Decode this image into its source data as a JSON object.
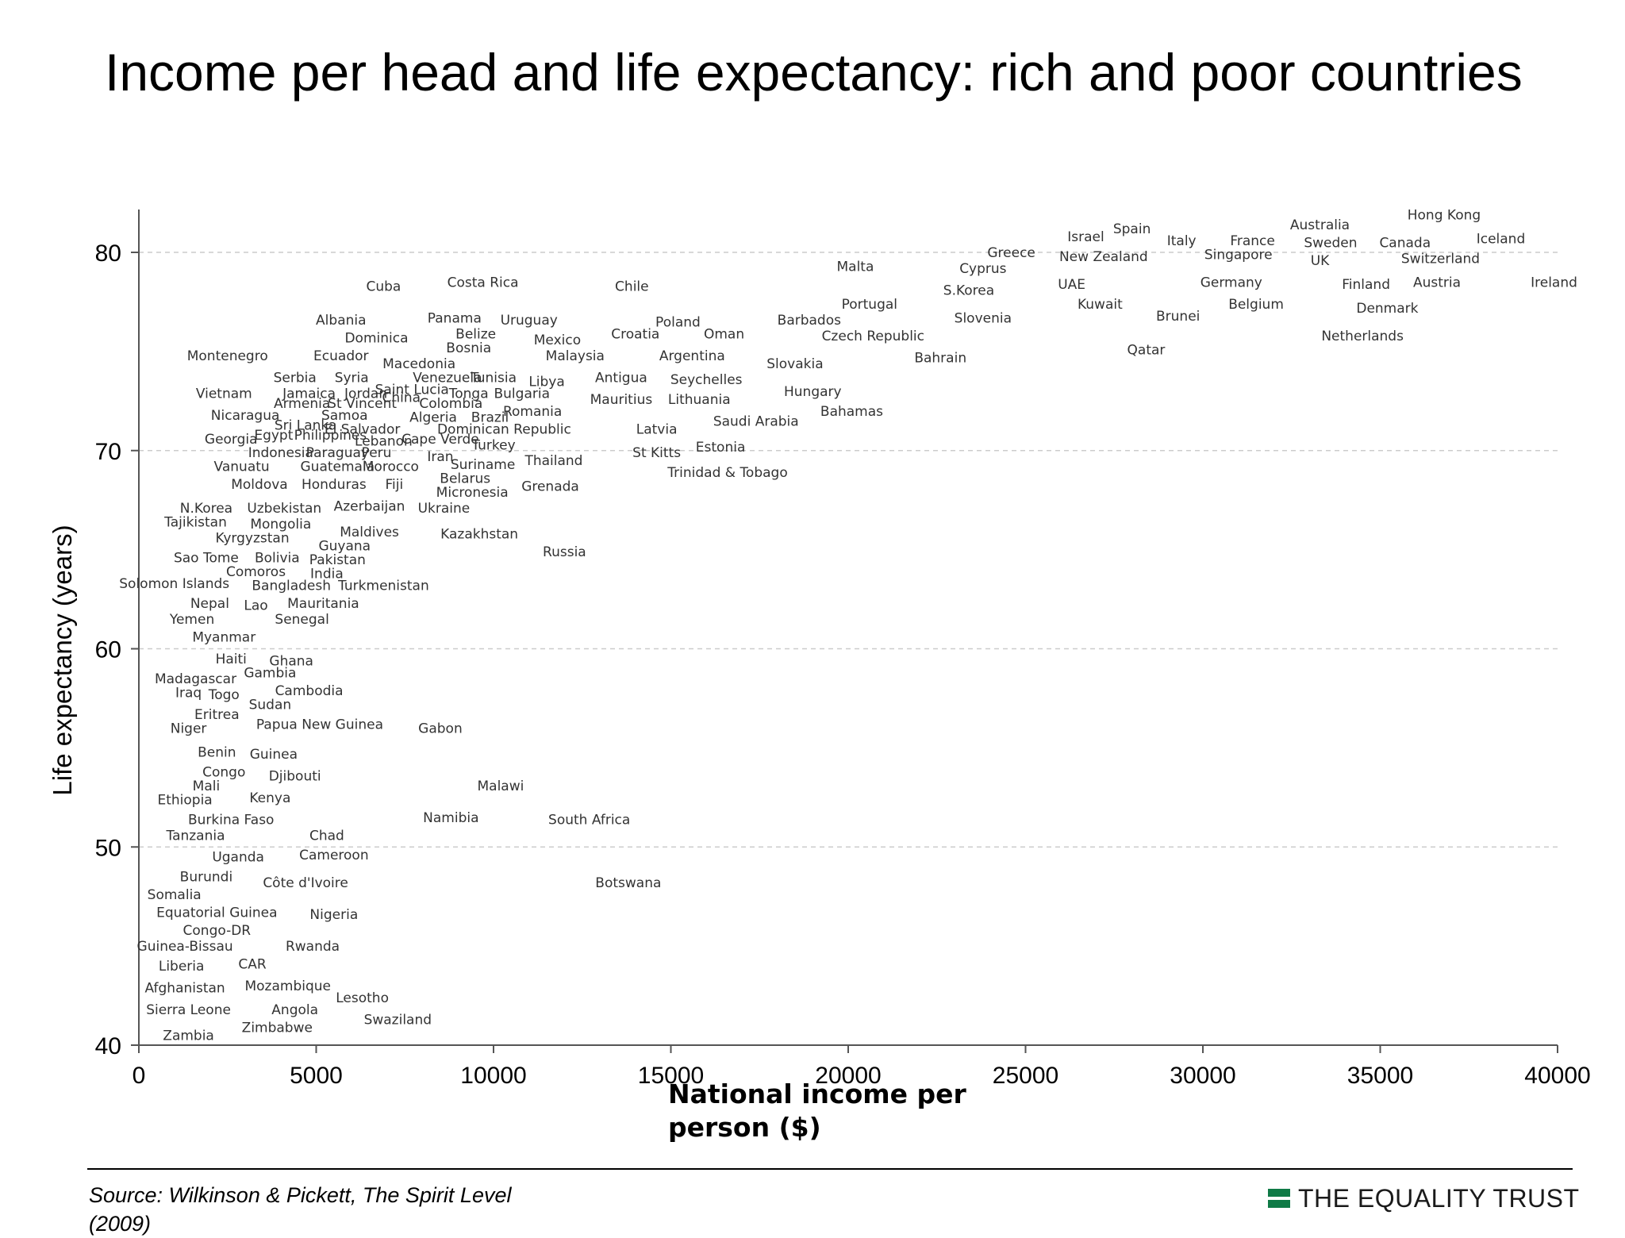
{
  "title": "Income per head and life expectancy: rich and poor countries",
  "source": "Source: Wilkinson & Pickett, The Spirit Level (2009)",
  "brand": "THE EQUALITY TRUST",
  "colors": {
    "brand_green": "#0f7a46",
    "grid": "#cccccc",
    "text": "#000000",
    "label": "#333333"
  },
  "chart_data": {
    "type": "scatter",
    "xlabel": "National income per person ($)",
    "ylabel": "Life expectancy (years)",
    "xlim": [
      0,
      40000
    ],
    "ylim": [
      40,
      82
    ],
    "xticks": [
      0,
      5000,
      10000,
      15000,
      20000,
      25000,
      30000,
      35000,
      40000
    ],
    "yticks": [
      40,
      50,
      60,
      70,
      80
    ],
    "grid": "horizontal dashed",
    "marker": "country name text label",
    "points": [
      {
        "label": "Hong Kong",
        "x": 36800,
        "y": 81.9
      },
      {
        "label": "Iceland",
        "x": 38400,
        "y": 80.7
      },
      {
        "label": "Australia",
        "x": 33300,
        "y": 81.4
      },
      {
        "label": "Spain",
        "x": 28000,
        "y": 81.2
      },
      {
        "label": "Israel",
        "x": 26700,
        "y": 80.8
      },
      {
        "label": "Italy",
        "x": 29400,
        "y": 80.6
      },
      {
        "label": "France",
        "x": 31400,
        "y": 80.6
      },
      {
        "label": "Sweden",
        "x": 33600,
        "y": 80.5
      },
      {
        "label": "Canada",
        "x": 35700,
        "y": 80.5
      },
      {
        "label": "Greece",
        "x": 24600,
        "y": 80.0
      },
      {
        "label": "New Zealand",
        "x": 27200,
        "y": 79.8
      },
      {
        "label": "Singapore",
        "x": 31000,
        "y": 79.9
      },
      {
        "label": "Switzerland",
        "x": 36700,
        "y": 79.7
      },
      {
        "label": "UK",
        "x": 33300,
        "y": 79.6
      },
      {
        "label": "Malta",
        "x": 20200,
        "y": 79.3
      },
      {
        "label": "Cyprus",
        "x": 23800,
        "y": 79.2
      },
      {
        "label": "UAE",
        "x": 26300,
        "y": 78.4
      },
      {
        "label": "Germany",
        "x": 30800,
        "y": 78.5
      },
      {
        "label": "Finland",
        "x": 34600,
        "y": 78.4
      },
      {
        "label": "Austria",
        "x": 36600,
        "y": 78.5
      },
      {
        "label": "Ireland",
        "x": 39900,
        "y": 78.5
      },
      {
        "label": "S.Korea",
        "x": 23400,
        "y": 78.1
      },
      {
        "label": "Kuwait",
        "x": 27100,
        "y": 77.4
      },
      {
        "label": "Belgium",
        "x": 31500,
        "y": 77.4
      },
      {
        "label": "Denmark",
        "x": 35200,
        "y": 77.2
      },
      {
        "label": "Portugal",
        "x": 20600,
        "y": 77.4
      },
      {
        "label": "Slovenia",
        "x": 23800,
        "y": 76.7
      },
      {
        "label": "Brunei",
        "x": 29300,
        "y": 76.8
      },
      {
        "label": "Netherlands",
        "x": 34500,
        "y": 75.8
      },
      {
        "label": "Czech Republic",
        "x": 20700,
        "y": 75.8
      },
      {
        "label": "Qatar",
        "x": 28400,
        "y": 75.1
      },
      {
        "label": "Bahrain",
        "x": 22600,
        "y": 74.7
      },
      {
        "label": "Barbados",
        "x": 18900,
        "y": 76.6
      },
      {
        "label": "Oman",
        "x": 16500,
        "y": 75.9
      },
      {
        "label": "Slovakia",
        "x": 18500,
        "y": 74.4
      },
      {
        "label": "Hungary",
        "x": 19000,
        "y": 73.0
      },
      {
        "label": "Bahamas",
        "x": 20100,
        "y": 72.0
      },
      {
        "label": "Saudi Arabia",
        "x": 17400,
        "y": 71.5
      },
      {
        "label": "Estonia",
        "x": 16400,
        "y": 70.2
      },
      {
        "label": "Trinidad & Tobago",
        "x": 16600,
        "y": 68.9
      },
      {
        "label": "Cuba",
        "x": 6900,
        "y": 78.3
      },
      {
        "label": "Costa Rica",
        "x": 9700,
        "y": 78.5
      },
      {
        "label": "Chile",
        "x": 13900,
        "y": 78.3
      },
      {
        "label": "Albania",
        "x": 5700,
        "y": 76.6
      },
      {
        "label": "Panama",
        "x": 8900,
        "y": 76.7
      },
      {
        "label": "Uruguay",
        "x": 11000,
        "y": 76.6
      },
      {
        "label": "Poland",
        "x": 15200,
        "y": 76.5
      },
      {
        "label": "Belize",
        "x": 9500,
        "y": 75.9
      },
      {
        "label": "Croatia",
        "x": 14000,
        "y": 75.9
      },
      {
        "label": "Dominica",
        "x": 6700,
        "y": 75.7
      },
      {
        "label": "Mexico",
        "x": 11800,
        "y": 75.6
      },
      {
        "label": "Bosnia",
        "x": 9300,
        "y": 75.2
      },
      {
        "label": "Montenegro",
        "x": 2500,
        "y": 74.8
      },
      {
        "label": "Ecuador",
        "x": 5700,
        "y": 74.8
      },
      {
        "label": "Malaysia",
        "x": 12300,
        "y": 74.8
      },
      {
        "label": "Argentina",
        "x": 15600,
        "y": 74.8
      },
      {
        "label": "Macedonia",
        "x": 7900,
        "y": 74.4
      },
      {
        "label": "Serbia",
        "x": 4400,
        "y": 73.7
      },
      {
        "label": "Syria",
        "x": 6000,
        "y": 73.7
      },
      {
        "label": "Venezuela",
        "x": 8700,
        "y": 73.7
      },
      {
        "label": "Tunisia",
        "x": 10000,
        "y": 73.7
      },
      {
        "label": "Libya",
        "x": 11500,
        "y": 73.5
      },
      {
        "label": "Antigua",
        "x": 13600,
        "y": 73.7
      },
      {
        "label": "Seychelles",
        "x": 16000,
        "y": 73.6
      },
      {
        "label": "Saint Lucia",
        "x": 7700,
        "y": 73.1
      },
      {
        "label": "Vietnam",
        "x": 2400,
        "y": 72.9
      },
      {
        "label": "Jamaica",
        "x": 4800,
        "y": 72.9
      },
      {
        "label": "Jordan",
        "x": 6400,
        "y": 72.9
      },
      {
        "label": "Tonga",
        "x": 9300,
        "y": 72.9
      },
      {
        "label": "Bulgaria",
        "x": 10800,
        "y": 72.9
      },
      {
        "label": "China",
        "x": 7400,
        "y": 72.7
      },
      {
        "label": "Mauritius",
        "x": 13600,
        "y": 72.6
      },
      {
        "label": "Lithuania",
        "x": 15800,
        "y": 72.6
      },
      {
        "label": "Armenia",
        "x": 4600,
        "y": 72.4
      },
      {
        "label": "St Vincent",
        "x": 6300,
        "y": 72.4
      },
      {
        "label": "Colombia",
        "x": 8800,
        "y": 72.4
      },
      {
        "label": "Romania",
        "x": 11100,
        "y": 72.0
      },
      {
        "label": "Nicaragua",
        "x": 3000,
        "y": 71.8
      },
      {
        "label": "Samoa",
        "x": 5800,
        "y": 71.8
      },
      {
        "label": "Algeria",
        "x": 8300,
        "y": 71.7
      },
      {
        "label": "Brazil",
        "x": 9900,
        "y": 71.7
      },
      {
        "label": "Sri Lanka",
        "x": 4700,
        "y": 71.3
      },
      {
        "label": "El Salvador",
        "x": 6300,
        "y": 71.1
      },
      {
        "label": "Dominican Republic",
        "x": 10300,
        "y": 71.1
      },
      {
        "label": "Latvia",
        "x": 14600,
        "y": 71.1
      },
      {
        "label": "Georgia",
        "x": 2600,
        "y": 70.6
      },
      {
        "label": "Egypt",
        "x": 3800,
        "y": 70.8
      },
      {
        "label": "Philippines",
        "x": 5400,
        "y": 70.8
      },
      {
        "label": "Lebanon",
        "x": 6900,
        "y": 70.5
      },
      {
        "label": "Cape Verde",
        "x": 8500,
        "y": 70.6
      },
      {
        "label": "Turkey",
        "x": 10000,
        "y": 70.3
      },
      {
        "label": "Indonesia",
        "x": 4000,
        "y": 69.9
      },
      {
        "label": "Paraguay",
        "x": 5600,
        "y": 69.9
      },
      {
        "label": "Peru",
        "x": 6700,
        "y": 69.9
      },
      {
        "label": "St Kitts",
        "x": 14600,
        "y": 69.9
      },
      {
        "label": "Iran",
        "x": 8500,
        "y": 69.7
      },
      {
        "label": "Thailand",
        "x": 11700,
        "y": 69.5
      },
      {
        "label": "Vanuatu",
        "x": 2900,
        "y": 69.2
      },
      {
        "label": "Guatemala",
        "x": 5600,
        "y": 69.2
      },
      {
        "label": "Morocco",
        "x": 7100,
        "y": 69.2
      },
      {
        "label": "Suriname",
        "x": 9700,
        "y": 69.3
      },
      {
        "label": "Belarus",
        "x": 9200,
        "y": 68.6
      },
      {
        "label": "Moldova",
        "x": 3400,
        "y": 68.3
      },
      {
        "label": "Honduras",
        "x": 5500,
        "y": 68.3
      },
      {
        "label": "Fiji",
        "x": 7200,
        "y": 68.3
      },
      {
        "label": "Micronesia",
        "x": 9400,
        "y": 67.9
      },
      {
        "label": "Grenada",
        "x": 11600,
        "y": 68.2
      },
      {
        "label": "Azerbaijan",
        "x": 6500,
        "y": 67.2
      },
      {
        "label": "Ukraine",
        "x": 8600,
        "y": 67.1
      },
      {
        "label": "N.Korea",
        "x": 1900,
        "y": 67.1
      },
      {
        "label": "Uzbekistan",
        "x": 4100,
        "y": 67.1
      },
      {
        "label": "Tajikistan",
        "x": 1600,
        "y": 66.4
      },
      {
        "label": "Mongolia",
        "x": 4000,
        "y": 66.3
      },
      {
        "label": "Maldives",
        "x": 6500,
        "y": 65.9
      },
      {
        "label": "Kazakhstan",
        "x": 9600,
        "y": 65.8
      },
      {
        "label": "Kyrgyzstan",
        "x": 3200,
        "y": 65.6
      },
      {
        "label": "Guyana",
        "x": 5800,
        "y": 65.2
      },
      {
        "label": "Russia",
        "x": 12000,
        "y": 64.9
      },
      {
        "label": "Sao Tome",
        "x": 1900,
        "y": 64.6
      },
      {
        "label": "Bolivia",
        "x": 3900,
        "y": 64.6
      },
      {
        "label": "Pakistan",
        "x": 5600,
        "y": 64.5
      },
      {
        "label": "Comoros",
        "x": 3300,
        "y": 63.9
      },
      {
        "label": "India",
        "x": 5300,
        "y": 63.8
      },
      {
        "label": "Solomon Islands",
        "x": 1000,
        "y": 63.3
      },
      {
        "label": "Bangladesh",
        "x": 4300,
        "y": 63.2
      },
      {
        "label": "Turkmenistan",
        "x": 6900,
        "y": 63.2
      },
      {
        "label": "Nepal",
        "x": 2000,
        "y": 62.3
      },
      {
        "label": "Lao",
        "x": 3300,
        "y": 62.2
      },
      {
        "label": "Mauritania",
        "x": 5200,
        "y": 62.3
      },
      {
        "label": "Yemen",
        "x": 1500,
        "y": 61.5
      },
      {
        "label": "Senegal",
        "x": 4600,
        "y": 61.5
      },
      {
        "label": "Myanmar",
        "x": 2400,
        "y": 60.6
      },
      {
        "label": "Haiti",
        "x": 2600,
        "y": 59.5
      },
      {
        "label": "Ghana",
        "x": 4300,
        "y": 59.4
      },
      {
        "label": "Gambia",
        "x": 3700,
        "y": 58.8
      },
      {
        "label": "Madagascar",
        "x": 1600,
        "y": 58.5
      },
      {
        "label": "Cambodia",
        "x": 4800,
        "y": 57.9
      },
      {
        "label": "Iraq",
        "x": 1400,
        "y": 57.8
      },
      {
        "label": "Togo",
        "x": 2400,
        "y": 57.7
      },
      {
        "label": "Sudan",
        "x": 3700,
        "y": 57.2
      },
      {
        "label": "Eritrea",
        "x": 2200,
        "y": 56.7
      },
      {
        "label": "Niger",
        "x": 1400,
        "y": 56.0
      },
      {
        "label": "Papua New Guinea",
        "x": 5100,
        "y": 56.2
      },
      {
        "label": "Gabon",
        "x": 8500,
        "y": 56.0
      },
      {
        "label": "Benin",
        "x": 2200,
        "y": 54.8
      },
      {
        "label": "Guinea",
        "x": 3800,
        "y": 54.7
      },
      {
        "label": "Congo",
        "x": 2400,
        "y": 53.8
      },
      {
        "label": "Djibouti",
        "x": 4400,
        "y": 53.6
      },
      {
        "label": "Malawi",
        "x": 10200,
        "y": 53.1
      },
      {
        "label": "Mali",
        "x": 1900,
        "y": 53.1
      },
      {
        "label": "Ethiopia",
        "x": 1300,
        "y": 52.4
      },
      {
        "label": "Kenya",
        "x": 3700,
        "y": 52.5
      },
      {
        "label": "Namibia",
        "x": 8800,
        "y": 51.5
      },
      {
        "label": "Burkina Faso",
        "x": 2600,
        "y": 51.4
      },
      {
        "label": "South Africa",
        "x": 12700,
        "y": 51.4
      },
      {
        "label": "Tanzania",
        "x": 1600,
        "y": 50.6
      },
      {
        "label": "Chad",
        "x": 5300,
        "y": 50.6
      },
      {
        "label": "Uganda",
        "x": 2800,
        "y": 49.5
      },
      {
        "label": "Cameroon",
        "x": 5500,
        "y": 49.6
      },
      {
        "label": "Burundi",
        "x": 1900,
        "y": 48.5
      },
      {
        "label": "Côte d'Ivoire",
        "x": 4700,
        "y": 48.2
      },
      {
        "label": "Botswana",
        "x": 13800,
        "y": 48.2
      },
      {
        "label": "Somalia",
        "x": 1000,
        "y": 47.6
      },
      {
        "label": "Equatorial Guinea",
        "x": 2200,
        "y": 46.7
      },
      {
        "label": "Nigeria",
        "x": 5500,
        "y": 46.6
      },
      {
        "label": "Congo-DR",
        "x": 2200,
        "y": 45.8
      },
      {
        "label": "Guinea-Bissau",
        "x": 1300,
        "y": 45.0
      },
      {
        "label": "Rwanda",
        "x": 4900,
        "y": 45.0
      },
      {
        "label": "Liberia",
        "x": 1200,
        "y": 44.0
      },
      {
        "label": "CAR",
        "x": 3200,
        "y": 44.1
      },
      {
        "label": "Afghanistan",
        "x": 1300,
        "y": 42.9
      },
      {
        "label": "Mozambique",
        "x": 4200,
        "y": 43.0
      },
      {
        "label": "Lesotho",
        "x": 6300,
        "y": 42.4
      },
      {
        "label": "Sierra Leone",
        "x": 1400,
        "y": 41.8
      },
      {
        "label": "Angola",
        "x": 4400,
        "y": 41.8
      },
      {
        "label": "Swaziland",
        "x": 7300,
        "y": 41.3
      },
      {
        "label": "Zimbabwe",
        "x": 3900,
        "y": 40.9
      },
      {
        "label": "Zambia",
        "x": 1400,
        "y": 40.5
      }
    ]
  }
}
